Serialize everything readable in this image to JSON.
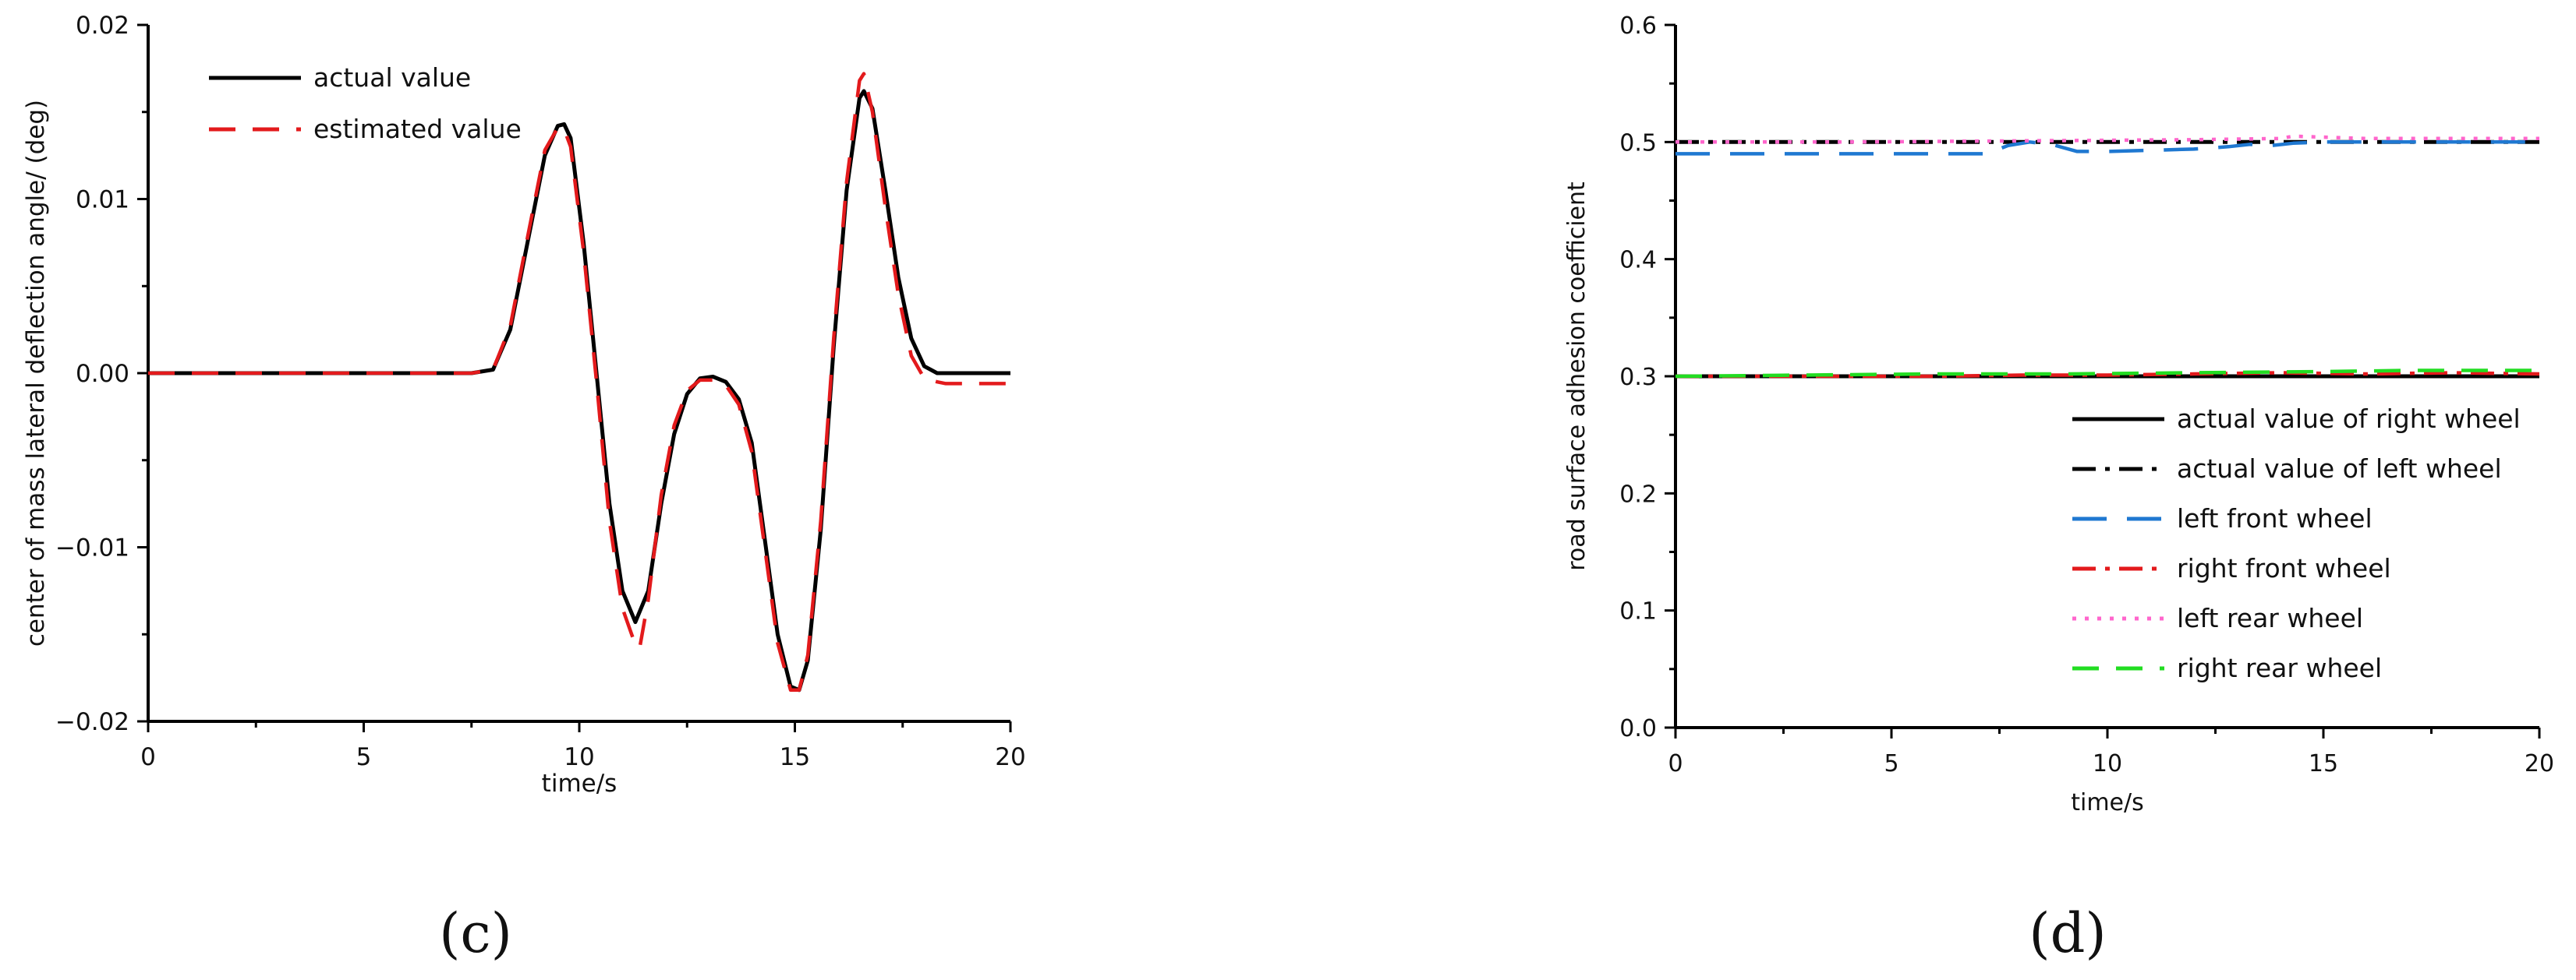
{
  "chart_data": [
    {
      "type": "line",
      "panel_label": "(c)",
      "xlabel": "time/s",
      "ylabel": "center of mass lateral deflection angle/  (deg)",
      "xlim": [
        0,
        20
      ],
      "ylim": [
        -0.02,
        0.02
      ],
      "xticks": [
        0,
        5,
        10,
        15,
        20
      ],
      "xtick_labels": [
        "0",
        "5",
        "10",
        "15",
        "20"
      ],
      "yticks": [
        -0.02,
        -0.01,
        0.0,
        0.01,
        0.02
      ],
      "ytick_labels": [
        "−0.02",
        "−0.01",
        "0.00",
        "0.01",
        "0.02"
      ],
      "grid": false,
      "legend_position": "top-left",
      "series": [
        {
          "name": "actual value",
          "color": "#000000",
          "dash": "solid",
          "x": [
            0,
            7.5,
            8.0,
            8.4,
            8.8,
            9.2,
            9.5,
            9.65,
            9.8,
            10.1,
            10.4,
            10.7,
            11.0,
            11.3,
            11.6,
            11.9,
            12.2,
            12.5,
            12.8,
            13.1,
            13.4,
            13.7,
            14.0,
            14.3,
            14.6,
            14.9,
            15.1,
            15.3,
            15.6,
            15.9,
            16.2,
            16.5,
            16.6,
            16.8,
            17.1,
            17.4,
            17.7,
            18.0,
            18.3,
            18.6,
            19.0,
            20.0
          ],
          "y": [
            0.0,
            0.0,
            0.0002,
            0.0025,
            0.0075,
            0.0125,
            0.0142,
            0.0143,
            0.0135,
            0.0075,
            0.0,
            -0.0075,
            -0.0125,
            -0.0143,
            -0.0125,
            -0.0075,
            -0.0035,
            -0.0012,
            -0.0003,
            -0.0002,
            -0.0005,
            -0.0015,
            -0.004,
            -0.0095,
            -0.015,
            -0.018,
            -0.0182,
            -0.0165,
            -0.009,
            0.0015,
            0.0105,
            0.0158,
            0.0162,
            0.0152,
            0.0105,
            0.0055,
            0.002,
            0.0004,
            0.0,
            0.0,
            0.0,
            0.0
          ]
        },
        {
          "name": "estimated value",
          "color": "#e31a1c",
          "dash": "dashed",
          "x": [
            0,
            7.5,
            8.0,
            8.4,
            8.8,
            9.2,
            9.5,
            9.65,
            9.8,
            10.1,
            10.4,
            10.7,
            11.0,
            11.3,
            11.4,
            11.6,
            11.9,
            12.2,
            12.5,
            12.8,
            13.1,
            13.4,
            13.7,
            14.0,
            14.3,
            14.6,
            14.9,
            15.1,
            15.3,
            15.6,
            15.9,
            16.2,
            16.5,
            16.6,
            16.8,
            17.1,
            17.4,
            17.7,
            18.0,
            18.3,
            18.5,
            19.0,
            20.0
          ],
          "y": [
            0.0,
            0.0,
            0.0002,
            0.0027,
            0.0078,
            0.0128,
            0.0141,
            0.014,
            0.013,
            0.007,
            -0.0005,
            -0.0085,
            -0.0135,
            -0.0156,
            -0.0158,
            -0.013,
            -0.007,
            -0.003,
            -0.001,
            -0.0004,
            -0.0004,
            -0.0007,
            -0.0018,
            -0.0045,
            -0.01,
            -0.0155,
            -0.0182,
            -0.0182,
            -0.0162,
            -0.0085,
            0.002,
            0.011,
            0.0168,
            0.0172,
            0.015,
            0.0095,
            0.0045,
            0.001,
            -0.0003,
            -0.0005,
            -0.0006,
            -0.0006,
            -0.0006
          ]
        }
      ]
    },
    {
      "type": "line",
      "panel_label": "(d)",
      "xlabel": "time/s",
      "ylabel": "road surface adhesion coefficient",
      "xlim": [
        0,
        20
      ],
      "ylim": [
        0.0,
        0.6
      ],
      "xticks": [
        0,
        5,
        10,
        15,
        20
      ],
      "xtick_labels": [
        "0",
        "5",
        "10",
        "15",
        "20"
      ],
      "yticks": [
        0.0,
        0.1,
        0.2,
        0.3,
        0.4,
        0.5,
        0.6
      ],
      "ytick_labels": [
        "0.0",
        "0.1",
        "0.2",
        "0.3",
        "0.4",
        "0.5",
        "0.6"
      ],
      "grid": false,
      "legend_position": "bottom-right",
      "series": [
        {
          "name": "actual value of right wheel",
          "color": "#000000",
          "dash": "solid",
          "x": [
            0,
            20
          ],
          "y": [
            0.3,
            0.3
          ]
        },
        {
          "name": "actual value of left wheel",
          "color": "#000000",
          "dash": "dashdot",
          "x": [
            0,
            20
          ],
          "y": [
            0.5,
            0.5
          ]
        },
        {
          "name": "left front wheel",
          "color": "#1f78d1",
          "dash": "longdash",
          "x": [
            0,
            6,
            7.2,
            7.7,
            8.2,
            8.7,
            9.3,
            10,
            11,
            12,
            12.8,
            13.3,
            13.8,
            14.3,
            15,
            16,
            17,
            18,
            19,
            20
          ],
          "y": [
            0.49,
            0.49,
            0.49,
            0.497,
            0.5,
            0.498,
            0.492,
            0.492,
            0.493,
            0.494,
            0.496,
            0.498,
            0.497,
            0.499,
            0.5,
            0.5,
            0.5,
            0.5,
            0.5,
            0.5
          ]
        },
        {
          "name": "right front wheel",
          "color": "#e31a1c",
          "dash": "dashdot",
          "x": [
            0,
            2,
            4,
            6,
            8,
            10,
            12,
            14,
            16,
            18,
            20
          ],
          "y": [
            0.3,
            0.3,
            0.3,
            0.3,
            0.301,
            0.301,
            0.302,
            0.303,
            0.302,
            0.303,
            0.302
          ]
        },
        {
          "name": "left rear wheel",
          "color": "#ff66cc",
          "dash": "dotted",
          "x": [
            0,
            4,
            8,
            12,
            14,
            14.3,
            16,
            18,
            20
          ],
          "y": [
            0.5,
            0.5,
            0.501,
            0.502,
            0.503,
            0.505,
            0.503,
            0.503,
            0.503
          ]
        },
        {
          "name": "right rear wheel",
          "color": "#22dd22",
          "dash": "dashed",
          "x": [
            0,
            3,
            6,
            9,
            12,
            15,
            17,
            20
          ],
          "y": [
            0.3,
            0.301,
            0.302,
            0.302,
            0.303,
            0.304,
            0.305,
            0.305
          ]
        }
      ]
    }
  ]
}
